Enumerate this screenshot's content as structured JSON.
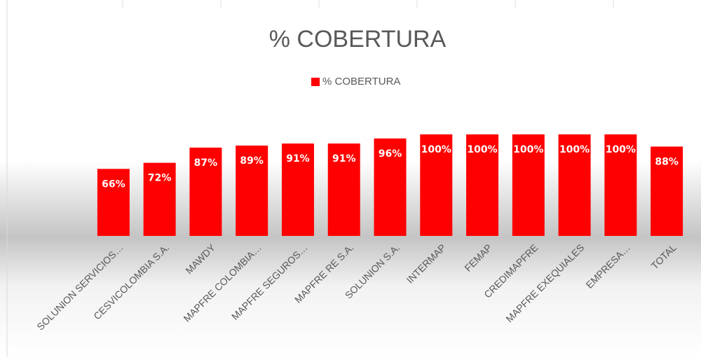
{
  "chart_data": {
    "type": "bar",
    "title": "% COBERTURA",
    "categories": [
      "SOLUNION SERVICIOS…",
      "CESVICOLOMBIA S.A.",
      "MAWDY",
      "MAPFRE COLOMBIA…",
      "MAPFRE SEGUROS…",
      "MAPFRE RE S.A.",
      "SOLUNION S.A.",
      "INTERMAP",
      "FEMAP",
      "CREDIMAPFRE",
      "MAPFRE EXEQUIALES",
      "EMPRESA…",
      "TOTAL"
    ],
    "series": [
      {
        "name": "% COBERTURA",
        "color": "#ff0000",
        "values": [
          66,
          72,
          87,
          89,
          91,
          91,
          96,
          100,
          100,
          100,
          100,
          100,
          88
        ],
        "value_labels": [
          "66%",
          "72%",
          "87%",
          "89%",
          "91%",
          "91%",
          "96%",
          "100%",
          "100%",
          "100%",
          "100%",
          "100%",
          "88%"
        ]
      }
    ],
    "ylim": [
      0,
      120
    ],
    "legend": "top"
  }
}
